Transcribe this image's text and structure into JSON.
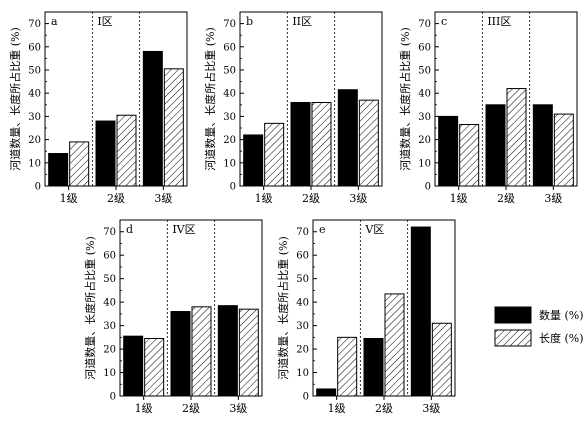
{
  "chart_data": [
    {
      "type": "bar",
      "panel": "a",
      "zone": "I区",
      "ylabel": "河道数量、长度所占比重 (%)",
      "ylim": [
        0,
        75
      ],
      "yticks": [
        0,
        10,
        20,
        30,
        40,
        50,
        60,
        70
      ],
      "categories": [
        "1级",
        "2级",
        "3级"
      ],
      "series": [
        {
          "name": "数量 (%)",
          "values": [
            14,
            28,
            58
          ]
        },
        {
          "name": "长度 (%)",
          "values": [
            19,
            30.5,
            50.5
          ]
        }
      ]
    },
    {
      "type": "bar",
      "panel": "b",
      "zone": "II区",
      "ylabel": "河道数量、长度所占比重 (%)",
      "ylim": [
        0,
        75
      ],
      "yticks": [
        0,
        10,
        20,
        30,
        40,
        50,
        60,
        70
      ],
      "categories": [
        "1级",
        "2级",
        "3级"
      ],
      "series": [
        {
          "name": "数量 (%)",
          "values": [
            22,
            36,
            41.5
          ]
        },
        {
          "name": "长度 (%)",
          "values": [
            27,
            36,
            37
          ]
        }
      ]
    },
    {
      "type": "bar",
      "panel": "c",
      "zone": "III区",
      "ylabel": "河道数量、长度所占比重 (%)",
      "ylim": [
        0,
        75
      ],
      "yticks": [
        0,
        10,
        20,
        30,
        40,
        50,
        60,
        70
      ],
      "categories": [
        "1级",
        "2级",
        "3级"
      ],
      "series": [
        {
          "name": "数量 (%)",
          "values": [
            30,
            35,
            35
          ]
        },
        {
          "name": "长度 (%)",
          "values": [
            26.5,
            42,
            31
          ]
        }
      ]
    },
    {
      "type": "bar",
      "panel": "d",
      "zone": "IV区",
      "ylabel": "河道数量、长度所占比重 (%)",
      "ylim": [
        0,
        75
      ],
      "yticks": [
        0,
        10,
        20,
        30,
        40,
        50,
        60,
        70
      ],
      "categories": [
        "1级",
        "2级",
        "3级"
      ],
      "series": [
        {
          "name": "数量 (%)",
          "values": [
            25.5,
            36,
            38.5
          ]
        },
        {
          "name": "长度 (%)",
          "values": [
            24.5,
            38,
            37
          ]
        }
      ]
    },
    {
      "type": "bar",
      "panel": "e",
      "zone": "V区",
      "ylabel": "河道数量、长度所占比重 (%)",
      "ylim": [
        0,
        75
      ],
      "yticks": [
        0,
        10,
        20,
        30,
        40,
        50,
        60,
        70
      ],
      "categories": [
        "1级",
        "2级",
        "3级"
      ],
      "series": [
        {
          "name": "数量 (%)",
          "values": [
            3,
            24.5,
            72
          ]
        },
        {
          "name": "长度 (%)",
          "values": [
            25,
            43.5,
            31
          ]
        }
      ]
    }
  ],
  "legend": {
    "items": [
      {
        "label": "数量 (%)",
        "fill": "solid",
        "color": "#000000"
      },
      {
        "label": "长度 (%)",
        "fill": "hatch",
        "color": "#000000"
      }
    ]
  }
}
